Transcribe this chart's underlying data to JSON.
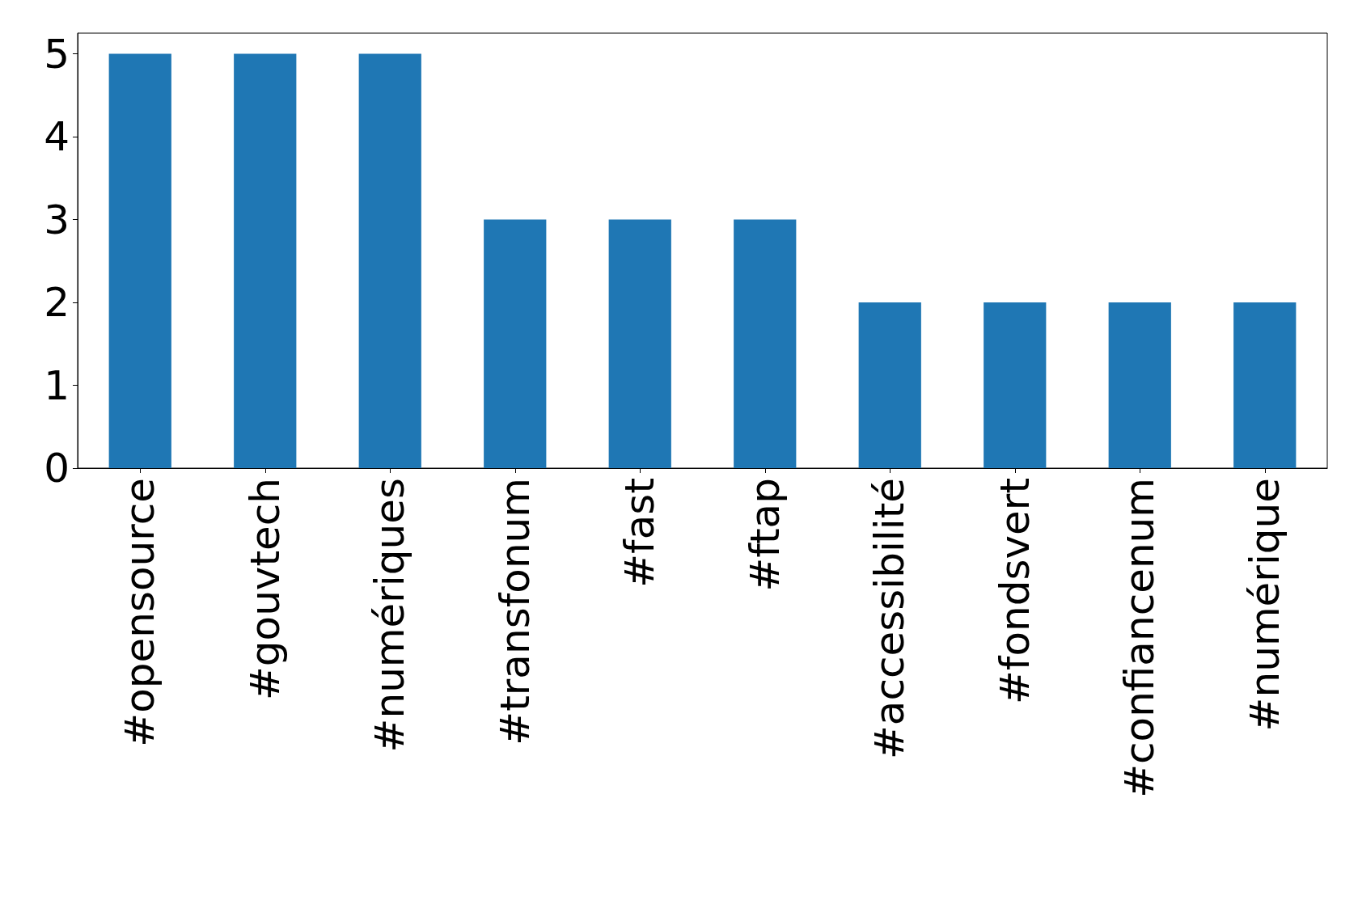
{
  "chart_data": {
    "type": "bar",
    "categories": [
      "#opensource",
      "#gouvtech",
      "#numériques",
      "#transfonum",
      "#fast",
      "#ftap",
      "#accessibilité",
      "#fondsvert",
      "#confiancenum",
      "#numérique"
    ],
    "values": [
      5,
      5,
      5,
      3,
      3,
      3,
      2,
      2,
      2,
      2
    ],
    "color": "#1f77b4",
    "ylim": [
      0,
      5.25
    ],
    "yticks": [
      0,
      1,
      2,
      3,
      4,
      5
    ],
    "grid": false
  }
}
